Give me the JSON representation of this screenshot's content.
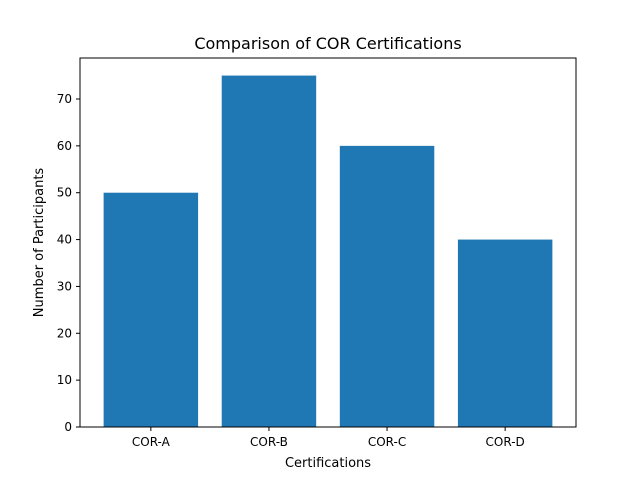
{
  "chart_data": {
    "type": "bar",
    "title": "Comparison of COR Certifications",
    "xlabel": "Certifications",
    "ylabel": "Number of Participants",
    "categories": [
      "COR-A",
      "COR-B",
      "COR-C",
      "COR-D"
    ],
    "values": [
      50,
      75,
      60,
      40
    ],
    "ylim": [
      0,
      78.75
    ],
    "yticks": [
      0,
      10,
      20,
      30,
      40,
      50,
      60,
      70
    ],
    "grid": false,
    "bar_color": "#1f77b4"
  }
}
